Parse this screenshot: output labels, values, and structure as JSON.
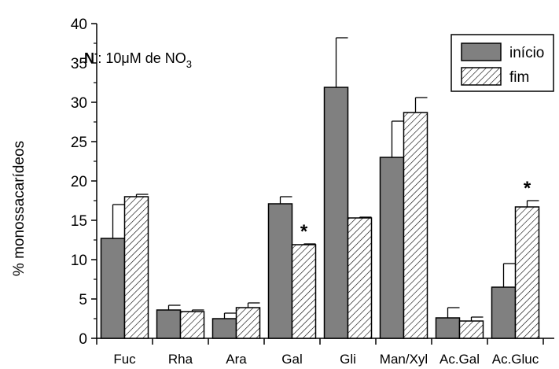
{
  "chart_data": {
    "type": "bar",
    "title": "",
    "annotation": {
      "prefix": "N",
      "superscript": "-",
      "body": ": 10μM de NO",
      "subscript": "3"
    },
    "ylabel": "% monossacarídeos",
    "xlabel": "",
    "ylim": [
      0,
      40
    ],
    "yticks": [
      "0",
      "5",
      "10",
      "15",
      "20",
      "25",
      "30",
      "35",
      "40"
    ],
    "categories": [
      "Fuc",
      "Rha",
      "Ara",
      "Gal",
      "Gli",
      "Man/Xyl",
      "Ac.Gal",
      "Ac.Gluc"
    ],
    "series": [
      {
        "name": "início",
        "color": "#808080",
        "pattern": "solid",
        "values": [
          12.7,
          3.6,
          2.5,
          17.1,
          31.9,
          23.0,
          2.6,
          6.5
        ],
        "errors": [
          4.3,
          0.6,
          0.7,
          0.9,
          6.3,
          4.6,
          1.3,
          3.0
        ]
      },
      {
        "name": "fim",
        "color": "#ffffff",
        "pattern": "hatched",
        "values": [
          18.0,
          3.4,
          3.9,
          11.9,
          15.3,
          28.7,
          2.2,
          16.7
        ],
        "errors": [
          0.3,
          0.2,
          0.6,
          0.1,
          0.1,
          1.9,
          0.5,
          0.8
        ]
      }
    ],
    "significance": [
      {
        "category": "Gal",
        "series": "fim",
        "label": "*"
      },
      {
        "category": "Ac.Gluc",
        "series": "fim",
        "label": "*"
      }
    ],
    "legend": {
      "position": "top-right"
    },
    "grid": false
  }
}
